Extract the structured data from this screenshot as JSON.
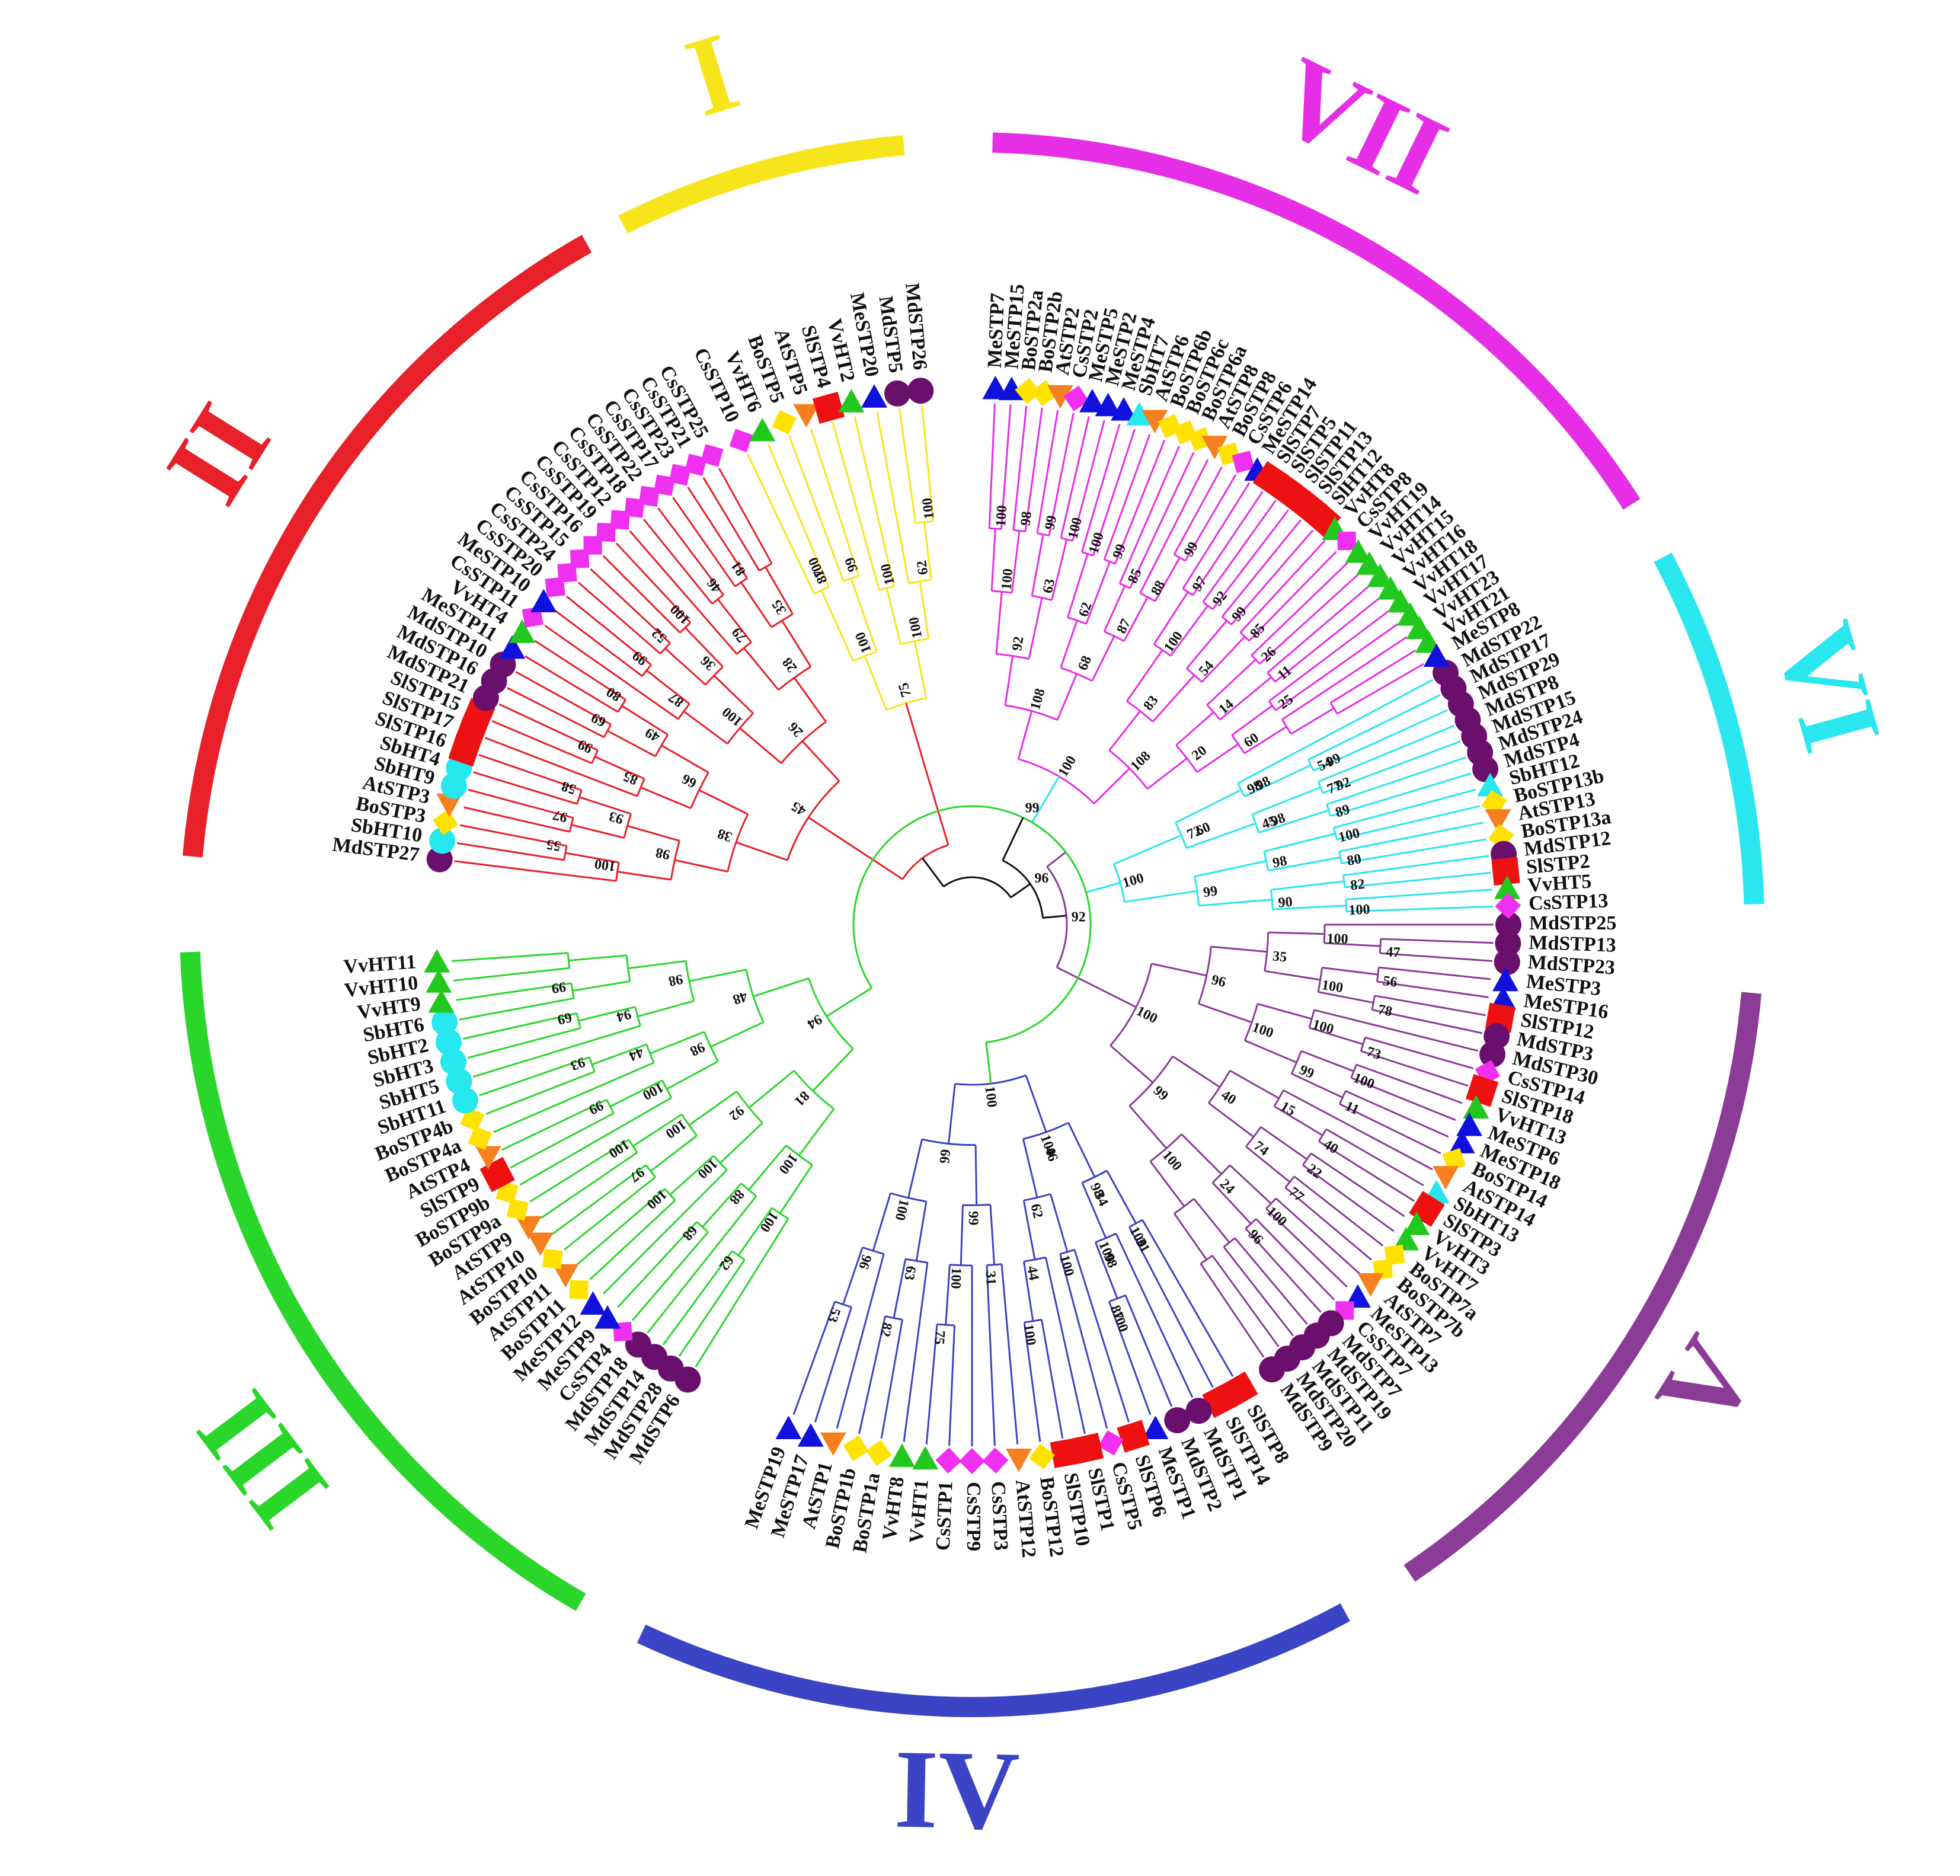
{
  "colors": {
    "I": "#f7e51c",
    "II": "#e8202a",
    "III": "#2bd62b",
    "IV": "#3b44c4",
    "V": "#8a3c96",
    "VI": "#2ae6ee",
    "VII": "#e62ee6",
    "root": "#111111"
  },
  "marker_styles": {
    "Cs": {
      "shape": "diamond",
      "color": "#f030f0"
    },
    "Vv": {
      "shape": "triangle",
      "color": "#22c81e"
    },
    "Bo": {
      "shape": "diamond",
      "color": "#ffe200"
    },
    "At": {
      "shape": "triangle-down",
      "color": "#f68020"
    },
    "Sl": {
      "shape": "square",
      "color": "#ee1111"
    },
    "Me": {
      "shape": "triangle",
      "color": "#1111dd"
    },
    "Md": {
      "shape": "circle",
      "color": "#6a0f6c"
    },
    "Sb": {
      "shape": "circle",
      "color": "#26e6ee"
    },
    "SbT": {
      "shape": "triangle",
      "color": "#26e6ee"
    }
  },
  "clades": [
    {
      "id": "I",
      "numeral": "I",
      "leaves": [
        "CsSTP10",
        "VvHT6",
        "BoSTP5",
        "AtSTP5",
        "SlSTP4",
        "VvHT2",
        "MeSTP20",
        "MdSTP5",
        "MdSTP26"
      ]
    },
    {
      "id": "II",
      "numeral": "II",
      "leaves": [
        "MdSTP27",
        "SbHT10",
        "BoSTP3",
        "AtSTP3",
        "SbHT9",
        "SbHT4",
        "SlSTP16",
        "SlSTP17",
        "SlSTP15",
        "MdSTP21",
        "MdSTP16",
        "MdSTP10",
        "MeSTP11",
        "VvHT4",
        "CsSTP11",
        "MeSTP10",
        "CsSTP20",
        "CsSTP24",
        "CsSTP15",
        "CsSTP16",
        "CsSTP19",
        "CsSTP12",
        "CsSTP18",
        "CsSTP22",
        "CsSTP17",
        "CsSTP23",
        "CsSTP21",
        "CsSTP25"
      ]
    },
    {
      "id": "III",
      "numeral": "III",
      "leaves": [
        "MdSTP6",
        "MdSTP28",
        "MdSTP14",
        "MdSTP18",
        "CsSTP4",
        "MeSTP9",
        "MeSTP12",
        "BoSTP11",
        "AtSTP11",
        "BoSTP10",
        "AtSTP10",
        "AtSTP9",
        "BoSTP9a",
        "BoSTP9b",
        "SlSTP9",
        "AtSTP4",
        "BoSTP4a",
        "BoSTP4b",
        "SbHT11",
        "SbHT5",
        "SbHT3",
        "SbHT2",
        "SbHT6",
        "VvHT9",
        "VvHT10",
        "VvHT11"
      ]
    },
    {
      "id": "IV",
      "numeral": "IV",
      "leaves": [
        "SlSTP8",
        "SlSTP14",
        "MdSTP1",
        "MdSTP2",
        "MeSTP1",
        "SlSTP6",
        "CsSTP5",
        "SlSTP1",
        "SlSTP10",
        "BoSTP12",
        "AtSTP12",
        "CsSTP3",
        "CsSTP9",
        "CsSTP1",
        "VvHT1",
        "VvHT8",
        "BoSTP1a",
        "BoSTP1b",
        "AtSTP1",
        "MeSTP17",
        "MeSTP19"
      ]
    },
    {
      "id": "V",
      "numeral": "V",
      "leaves": [
        "MdSTP25",
        "MdSTP13",
        "MdSTP23",
        "MeSTP3",
        "MeSTP16",
        "SlSTP12",
        "MdSTP3",
        "MdSTP30",
        "CsSTP14",
        "SlSTP18",
        "VvHT13",
        "MeSTP6",
        "MeSTP18",
        "BoSTP14",
        "AtSTP14",
        "SbHT13",
        "SlSTP3",
        "VvHT3",
        "VvHT7",
        "BoSTP7a",
        "BoSTP7b",
        "AtSTP7",
        "MeSTP13",
        "CsSTP7",
        "MdSTP7",
        "MdSTP19",
        "MdSTP11",
        "MdSTP20",
        "MdSTP9"
      ]
    },
    {
      "id": "VI",
      "numeral": "VI",
      "leaves": [
        "MdSTP22",
        "MdSTP17",
        "MdSTP29",
        "MdSTP8",
        "MdSTP15",
        "MdSTP24",
        "MdSTP4",
        "SbHT12",
        "BoSTP13b",
        "AtSTP13",
        "BoSTP13a",
        "MdSTP12",
        "SlSTP2",
        "VvHT5",
        "CsSTP13"
      ]
    },
    {
      "id": "VII",
      "numeral": "VII",
      "leaves": [
        "MeSTP7",
        "MeSTP15",
        "BoSTP2a",
        "BoSTP2b",
        "AtSTP2",
        "CsSTP2",
        "MeSTP5",
        "MeSTP2",
        "MeSTP4",
        "SbHT7",
        "AtSTP6",
        "BoSTP6b",
        "BoSTP6c",
        "BoSTP6a",
        "AtSTP8",
        "BoSTP8",
        "CsSTP6",
        "MeSTP14",
        "SlSTP7",
        "SlSTP5",
        "SlSTP11",
        "SlSTP13",
        "SlHT12",
        "VvHT8",
        "CsSTP8",
        "VvHT19",
        "VvHT14",
        "VvHT15",
        "VvHT16",
        "VvHT18",
        "VvHT17",
        "VvHT23",
        "VvHT21",
        "MeSTP8"
      ]
    }
  ],
  "support_values": {
    "I": [
      "87",
      "100",
      "99",
      "75",
      "100",
      "100",
      "62",
      "100",
      "100"
    ],
    "II": [
      "100",
      "55",
      "98",
      "97",
      "93",
      "58",
      "38",
      "85",
      "99",
      "66",
      "69",
      "49",
      "80",
      "45",
      "87",
      "99",
      "100",
      "52",
      "36",
      "100",
      "26",
      "79",
      "46",
      "28",
      "81",
      "35"
    ],
    "III": [
      "100",
      "62",
      "100",
      "88",
      "68",
      "81",
      "100",
      "100",
      "92",
      "97",
      "100",
      "100",
      "94",
      "100",
      "99",
      "98",
      "44",
      "93",
      "48",
      "94",
      "69",
      "98",
      "99"
    ],
    "IV": [
      "100",
      "98",
      "100",
      "87",
      "100",
      "100",
      "62",
      "44",
      "100",
      "100",
      "31",
      "99",
      "100",
      "75",
      "66",
      "63",
      "82",
      "100",
      "96",
      "53",
      "31",
      "34",
      "98",
      "100",
      "46"
    ],
    "V": [
      "100",
      "47",
      "35",
      "56",
      "100",
      "78",
      "96",
      "100",
      "73",
      "100",
      "100",
      "99",
      "11",
      "100",
      "15",
      "40",
      "40",
      "22",
      "74",
      "77",
      "99",
      "100",
      "24",
      "96",
      "100"
    ],
    "VI": [
      "98",
      "54",
      "72",
      "77",
      "45",
      "89",
      "100",
      "100",
      "98",
      "80",
      "99",
      "82",
      "90",
      "100",
      "98",
      "99",
      "60",
      "92",
      "98"
    ],
    "VII": [
      "100",
      "100",
      "98",
      "92",
      "99",
      "63",
      "100",
      "108",
      "100",
      "62",
      "99",
      "68",
      "85",
      "87",
      "88",
      "99",
      "100",
      "97",
      "100",
      "92",
      "83",
      "99",
      "54",
      "85",
      "108",
      "26",
      "14",
      "11",
      "20",
      "25",
      "60"
    ]
  },
  "root_support": [
    "99",
    "96",
    "92"
  ]
}
